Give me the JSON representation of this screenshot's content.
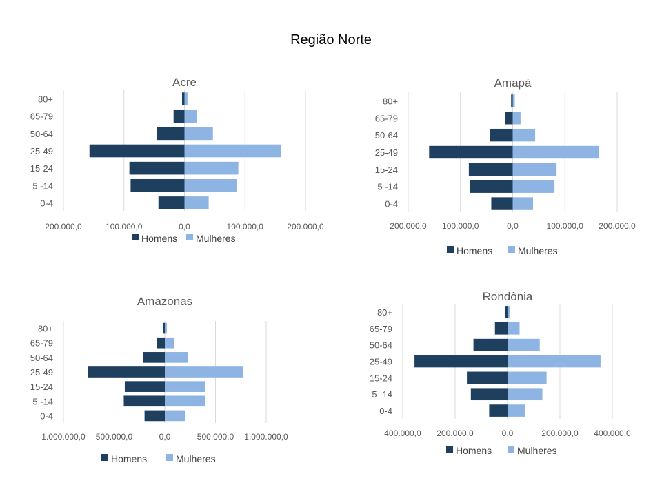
{
  "page": {
    "title": "Região Norte"
  },
  "colors": {
    "homens": "#1f3f5f",
    "mulheres": "#8db4e2"
  },
  "chart_data": [
    {
      "type": "bar",
      "orientation": "horizontal-population-pyramid",
      "title": "Acre",
      "categories": [
        "0-4",
        "5 -14",
        "15-24",
        "25-49",
        "50-64",
        "65-79",
        "80+"
      ],
      "series": [
        {
          "name": "Homens",
          "values": [
            43000,
            89000,
            91000,
            157000,
            45000,
            18000,
            4000
          ]
        },
        {
          "name": "Mulheres",
          "values": [
            40000,
            86000,
            89000,
            160000,
            47000,
            21000,
            5000
          ]
        }
      ],
      "xlim": [
        -200000,
        200000
      ],
      "ticks": [
        "200.000,0",
        "100.000,0",
        "0,0",
        "100.000,0",
        "200.000,0"
      ],
      "legend": [
        "Homens",
        "Mulheres"
      ],
      "legend_position": "bottom"
    },
    {
      "type": "bar",
      "orientation": "horizontal-population-pyramid",
      "title": "Amapá",
      "categories": [
        "0-4",
        "5 -14",
        "15-24",
        "25-49",
        "50-64",
        "65-79",
        "80+"
      ],
      "series": [
        {
          "name": "Homens",
          "values": [
            41000,
            82000,
            84000,
            160000,
            44000,
            15000,
            3000
          ]
        },
        {
          "name": "Mulheres",
          "values": [
            39000,
            80000,
            84000,
            165000,
            43000,
            15000,
            4000
          ]
        }
      ],
      "xlim": [
        -200000,
        200000
      ],
      "ticks": [
        "200.000,0",
        "100.000,0",
        "0,0",
        "100.000,0",
        "200.000,0"
      ],
      "legend": [
        "Homens",
        "Mulheres"
      ],
      "legend_position": "bottom"
    },
    {
      "type": "bar",
      "orientation": "horizontal-population-pyramid",
      "title": "Amazonas",
      "categories": [
        "0-4",
        "5 -14",
        "15-24",
        "25-49",
        "50-64",
        "65-79",
        "80+"
      ],
      "series": [
        {
          "name": "Homens",
          "values": [
            200000,
            405000,
            395000,
            760000,
            215000,
            80000,
            15000
          ]
        },
        {
          "name": "Mulheres",
          "values": [
            200000,
            395000,
            395000,
            775000,
            225000,
            95000,
            20000
          ]
        }
      ],
      "xlim": [
        -1000000,
        1000000
      ],
      "ticks": [
        "1.000.000,0",
        "500.000,0",
        "0,0",
        "500.000,0",
        "1.000.000,0"
      ],
      "legend": [
        "Homens",
        "Mulheres"
      ],
      "legend_position": "bottom"
    },
    {
      "type": "bar",
      "orientation": "horizontal-population-pyramid",
      "title": "Rondônia",
      "categories": [
        "0-4",
        "5 -14",
        "15-24",
        "25-49",
        "50-64",
        "65-79",
        "80+"
      ],
      "series": [
        {
          "name": "Homens",
          "values": [
            70000,
            140000,
            155000,
            355000,
            130000,
            48000,
            10000
          ]
        },
        {
          "name": "Mulheres",
          "values": [
            67000,
            133000,
            149000,
            355000,
            123000,
            46000,
            10000
          ]
        }
      ],
      "xlim": [
        -400000,
        400000
      ],
      "ticks": [
        "400.000,0",
        "200.000,0",
        "0,0",
        "200.000,0",
        "400.000,0"
      ],
      "legend": [
        "Homens",
        "Mulheres"
      ],
      "legend_position": "bottom"
    }
  ]
}
